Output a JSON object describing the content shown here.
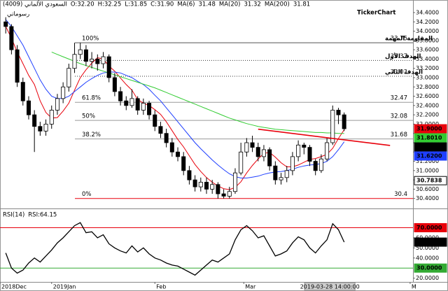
{
  "chart_data": [
    {
      "type": "candlestick",
      "symbol": "(4009) السعودي الألماني",
      "ohlc": [
        "O:32.20",
        "H:32.25",
        "L:31.85",
        "C:31.90"
      ],
      "watermark": "رسوماتي",
      "brand": "TickerChart",
      "candles": {
        "open": [
          34.2,
          34.1,
          33.6,
          32.9,
          32.5,
          32.2,
          31.95,
          31.85,
          32.0,
          32.3,
          32.55,
          32.8,
          33.2,
          33.5,
          33.6,
          33.35,
          33.4,
          33.3,
          33.45,
          33.0,
          32.7,
          32.5,
          32.4,
          32.55,
          32.3,
          32.45,
          32.2,
          31.95,
          31.8,
          31.6,
          31.4,
          31.3,
          31.0,
          30.8,
          30.65,
          30.75,
          30.6,
          30.7,
          30.5,
          30.45,
          30.55,
          30.95,
          31.4,
          31.6,
          31.5,
          31.3,
          31.45,
          31.1,
          30.8,
          30.85,
          31.0,
          31.3,
          31.55,
          31.5,
          31.2,
          31.0,
          31.25,
          31.6,
          32.3,
          32.2
        ],
        "high": [
          34.3,
          34.15,
          33.7,
          33.0,
          32.6,
          32.3,
          32.05,
          32.1,
          32.4,
          32.65,
          32.9,
          33.3,
          33.75,
          33.75,
          33.7,
          33.55,
          33.5,
          33.55,
          33.5,
          33.1,
          32.8,
          32.6,
          32.75,
          32.6,
          32.55,
          32.5,
          32.3,
          32.05,
          31.9,
          31.7,
          31.5,
          31.4,
          31.1,
          30.9,
          30.85,
          30.85,
          30.8,
          30.75,
          30.6,
          30.65,
          31.05,
          31.6,
          31.7,
          31.75,
          31.6,
          31.55,
          31.5,
          31.2,
          30.95,
          31.1,
          31.4,
          31.65,
          31.6,
          31.55,
          31.25,
          31.35,
          31.7,
          32.4,
          32.35,
          32.25
        ],
        "low": [
          33.95,
          33.5,
          32.8,
          32.4,
          32.1,
          31.4,
          31.75,
          31.75,
          31.9,
          32.2,
          32.45,
          32.7,
          33.1,
          33.4,
          33.25,
          33.2,
          33.15,
          33.2,
          32.9,
          32.6,
          32.4,
          32.3,
          32.35,
          32.2,
          32.2,
          32.1,
          31.85,
          31.7,
          31.5,
          31.3,
          31.2,
          30.9,
          30.7,
          30.55,
          30.55,
          30.5,
          30.5,
          30.4,
          30.4,
          30.4,
          30.5,
          30.9,
          31.3,
          31.4,
          31.2,
          31.2,
          31.0,
          30.7,
          30.7,
          30.75,
          30.9,
          31.2,
          31.35,
          31.1,
          30.9,
          30.95,
          31.2,
          31.55,
          32.0,
          31.85
        ],
        "close": [
          34.1,
          33.6,
          32.9,
          32.5,
          32.2,
          31.95,
          31.85,
          32.0,
          32.3,
          32.55,
          32.8,
          33.2,
          33.5,
          33.6,
          33.35,
          33.4,
          33.3,
          33.45,
          33.0,
          32.7,
          32.5,
          32.4,
          32.55,
          32.3,
          32.45,
          32.2,
          31.95,
          31.8,
          31.6,
          31.4,
          31.3,
          31.0,
          30.8,
          30.65,
          30.75,
          30.6,
          30.7,
          30.5,
          30.45,
          30.55,
          30.95,
          31.4,
          31.6,
          31.5,
          31.3,
          31.45,
          31.1,
          30.8,
          30.85,
          31.0,
          31.3,
          31.55,
          31.5,
          31.2,
          31.0,
          31.25,
          31.6,
          32.3,
          32.2,
          31.9
        ],
        "up_color": "#ffffff",
        "down_color": "#000000"
      },
      "series": [
        {
          "name": "MA(6)",
          "header_value": 31.48,
          "color": "#e8000b",
          "values": [
            34.1,
            33.85,
            33.55,
            33.3,
            33.05,
            32.85,
            32.5,
            32.25,
            32.13,
            32.14,
            32.28,
            32.45,
            32.73,
            33.0,
            33.17,
            33.31,
            33.43,
            33.4,
            33.25,
            33.14,
            32.99,
            32.85,
            32.73,
            32.53,
            32.45,
            32.4,
            32.31,
            32.21,
            32.05,
            31.86,
            31.67,
            31.51,
            31.32,
            31.13,
            30.98,
            30.85,
            30.75,
            30.67,
            30.61,
            30.59,
            30.64,
            30.76,
            30.95,
            31.11,
            31.25,
            31.37,
            31.39,
            31.29,
            31.17,
            31.08,
            31.08,
            31.12,
            31.18,
            31.24,
            31.26,
            31.3,
            31.35,
            31.48,
            31.69,
            31.88
          ]
        },
        {
          "name": "MA(20)",
          "header_value": 31.32,
          "color": "#1f3fff",
          "values": [
            34.25,
            34.1,
            33.9,
            33.7,
            33.45,
            33.2,
            32.95,
            32.75,
            32.6,
            32.55,
            32.55,
            32.6,
            32.7,
            32.8,
            32.9,
            32.98,
            33.05,
            33.1,
            33.12,
            33.12,
            33.1,
            33.05,
            33.0,
            32.92,
            32.85,
            32.75,
            32.62,
            32.5,
            32.35,
            32.2,
            32.05,
            31.9,
            31.75,
            31.6,
            31.47,
            31.35,
            31.23,
            31.12,
            31.02,
            30.93,
            30.87,
            30.84,
            30.84,
            30.86,
            30.88,
            30.92,
            30.95,
            30.97,
            30.98,
            31.0,
            31.03,
            31.07,
            31.1,
            31.12,
            31.13,
            31.15,
            31.2,
            31.3,
            31.45,
            31.62
          ]
        },
        {
          "name": "MA(200)",
          "header_value": 31.81,
          "color": "#33cc33",
          "values": [
            null,
            null,
            null,
            null,
            null,
            null,
            null,
            null,
            33.55,
            33.5,
            33.45,
            33.4,
            33.35,
            33.3,
            33.26,
            33.22,
            33.18,
            33.14,
            33.1,
            33.06,
            33.02,
            32.98,
            32.94,
            32.9,
            32.86,
            32.82,
            32.78,
            32.73,
            32.68,
            32.63,
            32.58,
            32.53,
            32.48,
            32.43,
            32.38,
            32.33,
            32.28,
            32.23,
            32.18,
            32.13,
            32.09,
            32.05,
            32.01,
            31.98,
            31.95,
            31.93,
            31.91,
            31.89,
            31.88,
            31.87,
            31.86,
            31.85,
            31.84,
            31.83,
            31.82,
            31.82,
            31.81,
            31.81,
            31.8,
            31.8
          ]
        }
      ],
      "levels": [
        {
          "value": 33.75,
          "ratio": "100%",
          "note": "المقاومة المهمة",
          "color": "#555555",
          "style": "solid"
        },
        {
          "value": 33.37,
          "note": "الهدف الأول",
          "color": "#333333",
          "style": "dotted"
        },
        {
          "value": 33.03,
          "note": "الهدف الثاني",
          "color": "#333333",
          "style": "dotted"
        },
        {
          "value": 32.47,
          "ratio": "61.8%",
          "color": "#999999",
          "style": "solid"
        },
        {
          "value": 32.08,
          "ratio": "50%",
          "color": "#999999",
          "style": "solid"
        },
        {
          "value": 31.68,
          "ratio": "38.2%",
          "color": "#999999",
          "style": "solid"
        },
        {
          "value": 30.4,
          "ratio": "0%",
          "color": "#e8000b",
          "style": "solid"
        }
      ],
      "trendline": {
        "x": [
          44,
          67
        ],
        "values": [
          31.89,
          31.54
        ],
        "color": "#e8000b"
      },
      "price_labels": [
        {
          "value": 31.9,
          "label": "31.9000",
          "color": "#e8000b"
        },
        {
          "value": 31.801,
          "label": "31.8010",
          "color": "#33cc33"
        },
        {
          "value": 31.8,
          "label": "31.8000",
          "color": "#000000"
        },
        {
          "value": 31.62,
          "label": "31.6200",
          "color": "#1f3fff"
        },
        {
          "value": 30.7838,
          "label": "30.7838",
          "color": "#ffffff"
        }
      ],
      "xlim": [
        -1,
        71
      ],
      "xticks": [
        {
          "value": -1,
          "label": "2018Dec"
        },
        {
          "value": 8,
          "label": "2019Jan"
        },
        {
          "value": 26,
          "label": "Feb"
        },
        {
          "value": 41.5,
          "label": "Mar"
        },
        {
          "value": 70.5,
          "label": "M"
        }
      ],
      "cursor": {
        "value": 56.5,
        "label": "2019-03-28 14:00:00"
      },
      "ylim": [
        30.2,
        34.55
      ],
      "yticks": [
        {
          "value": 30.4,
          "label": "30.4000"
        },
        {
          "value": 30.6,
          "label": "30.6000"
        },
        {
          "value": 30.8,
          "label": "30.8000"
        },
        {
          "value": 31.0,
          "label": "31.0000"
        },
        {
          "value": 31.2,
          "label": "31.2000"
        },
        {
          "value": 31.4,
          "label": "31.4000"
        },
        {
          "value": 31.6,
          "label": "31.6000"
        },
        {
          "value": 31.8,
          "label": "31.8000"
        },
        {
          "value": 32.0,
          "label": "32.0000"
        },
        {
          "value": 32.2,
          "label": "32.2000"
        },
        {
          "value": 32.4,
          "label": "32.4000"
        },
        {
          "value": 32.6,
          "label": "32.6000"
        },
        {
          "value": 32.8,
          "label": "32.8000"
        },
        {
          "value": 33.0,
          "label": "33.0000"
        },
        {
          "value": 33.2,
          "label": "33.2000"
        },
        {
          "value": 33.4,
          "label": "33.4000"
        },
        {
          "value": 33.6,
          "label": "33.6000"
        },
        {
          "value": 33.8,
          "label": "33.8000"
        },
        {
          "value": 34.0,
          "label": "34.0000"
        },
        {
          "value": 34.2,
          "label": "34.2000"
        },
        {
          "value": 34.4,
          "label": "34.4000"
        }
      ],
      "grid": false
    },
    {
      "type": "line",
      "indicator": "RSI(14)",
      "reading": "RSI:64.15",
      "series": [
        {
          "name": "RSI",
          "color": "#000000",
          "values": [
            45,
            30,
            25,
            28,
            35,
            40,
            36,
            42,
            48,
            55,
            60,
            66,
            72,
            75,
            65,
            66,
            60,
            63,
            54,
            50,
            47,
            45,
            52,
            46,
            50,
            44,
            40,
            38,
            35,
            33,
            32,
            29,
            26,
            23,
            28,
            33,
            38,
            36,
            40,
            44,
            58,
            68,
            72,
            67,
            60,
            62,
            52,
            42,
            44,
            47,
            55,
            61,
            58,
            50,
            45,
            52,
            58,
            74,
            68,
            55.73
          ]
        }
      ],
      "last_label": {
        "value": 55.73,
        "label": "55.7300"
      },
      "levels": [
        {
          "value": 70,
          "label": "70.0000",
          "color": "#e8000b"
        },
        {
          "value": 30,
          "label": "30.0000",
          "color": "#33aa33"
        }
      ],
      "ylim": [
        17,
        87
      ],
      "yticks": [
        {
          "value": 20,
          "label": "20.0000"
        },
        {
          "value": 40,
          "label": "40.0000"
        },
        {
          "value": 50,
          "label": "50.0000"
        },
        {
          "value": 60,
          "label": "60.0000"
        }
      ],
      "grid": false
    }
  ]
}
